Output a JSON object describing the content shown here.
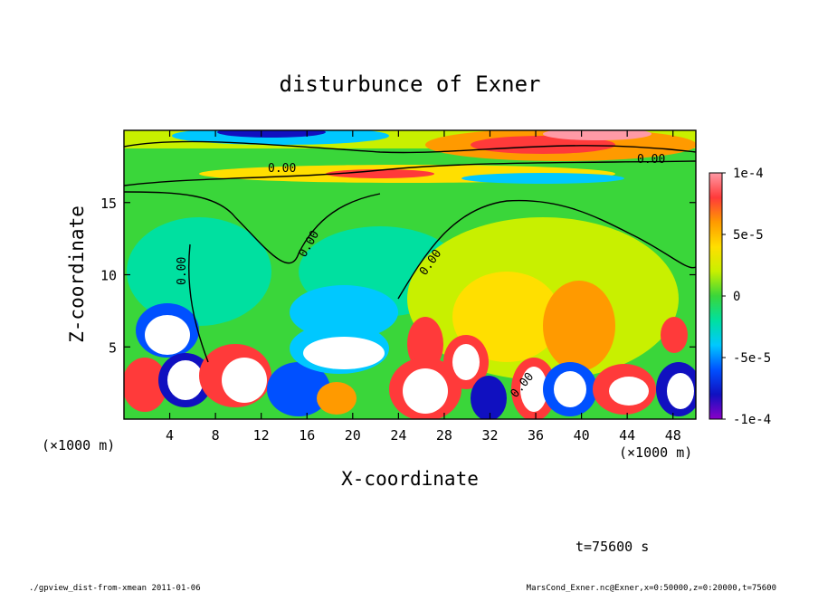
{
  "footer": {
    "left": "./gpview_dist-from-xmean  2011-01-06",
    "right": "MarsCond_Exner.nc@Exner,x=0:50000,z=0:20000,t=75600"
  },
  "time_label": "t=75600 s",
  "chart_data": {
    "type": "heatmap",
    "title": "disturbunce of Exner",
    "xlabel": "X-coordinate",
    "ylabel": "Z-coordinate",
    "x_unit_label": "(×1000 m)",
    "y_unit_label": "(×1000 m)",
    "xlim": [
      0,
      50
    ],
    "ylim": [
      0,
      20
    ],
    "x_ticks": [
      4,
      8,
      12,
      16,
      20,
      24,
      28,
      32,
      36,
      40,
      44,
      48
    ],
    "y_ticks": [
      5,
      10,
      15
    ],
    "colorbar": {
      "min": -0.0001,
      "max": 0.0001,
      "tick_labels": [
        "1e-4",
        "5e-5",
        "0",
        "-5e-5",
        "-1e-4"
      ],
      "colors": [
        "#ff9aa6",
        "#ff3a3a",
        "#ff9a00",
        "#ffdf00",
        "#c8f000",
        "#3ad63a",
        "#00e0a0",
        "#00c8ff",
        "#0050ff",
        "#1010c0",
        "#8a00c8"
      ]
    },
    "contour_labels": [
      "0.00",
      "0.00",
      "0.00",
      "0.00",
      "0.00",
      "0.00"
    ]
  }
}
